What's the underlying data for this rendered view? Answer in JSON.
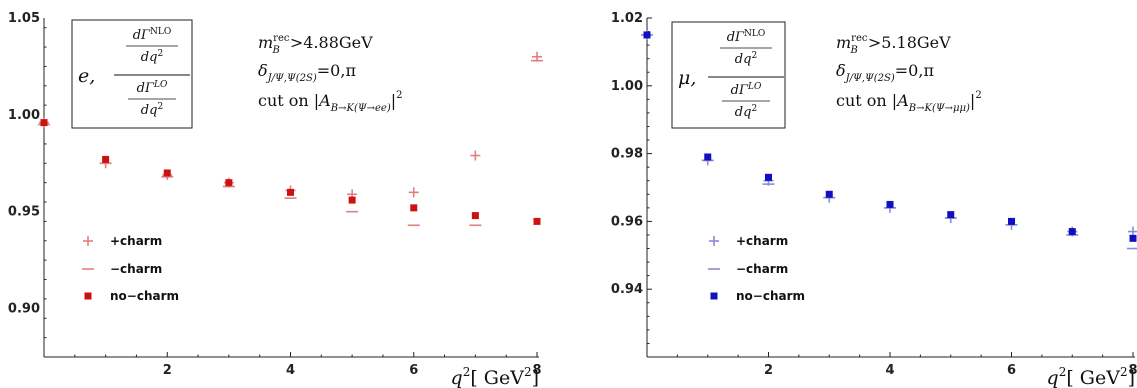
{
  "chart_data": [
    {
      "type": "scatter",
      "xlabel": "q²[ GeV²]",
      "xlim": [
        0,
        8
      ],
      "ylim": [
        0.875,
        1.05
      ],
      "xticks": [
        2,
        4,
        6,
        8
      ],
      "yticks": [
        0.9,
        0.95,
        1.0,
        1.05
      ],
      "ytick_labels": [
        "0.90",
        "0.95",
        "1.00",
        "1.05"
      ],
      "legend_position": "bottom-left",
      "box": {
        "lepton": "e,",
        "num_top": "dΓ",
        "num_sup": "NLO",
        "num_bot": "dq",
        "den_top": "dΓ",
        "den_sup": "LO",
        "den_bot": "dq"
      },
      "annotations": {
        "cut_mass": "m_B^rec>4.88GeV",
        "phase": "δ_{J/Ψ,Ψ(2S)}=0,π",
        "cut_amp": "cut on |A_{B→K(Ψ→ee)}|²"
      },
      "series": [
        {
          "name": "+charm",
          "marker": "plus",
          "color": "#e08080",
          "x": [
            0,
            1,
            2,
            3,
            4,
            5,
            6,
            7,
            8
          ],
          "values": [
            0.996,
            0.975,
            0.969,
            0.965,
            0.961,
            0.959,
            0.96,
            0.979,
            1.03
          ]
        },
        {
          "name": "−charm",
          "marker": "dash",
          "color": "#e08080",
          "x": [
            0,
            1,
            2,
            3,
            4,
            5,
            6,
            7,
            8
          ],
          "values": [
            0.995,
            0.975,
            0.968,
            0.963,
            0.957,
            0.95,
            0.943,
            0.943,
            1.028
          ]
        },
        {
          "name": "no−charm",
          "marker": "square",
          "color": "#cc1111",
          "x": [
            0,
            1,
            2,
            3,
            4,
            5,
            6,
            7,
            8
          ],
          "values": [
            0.996,
            0.977,
            0.97,
            0.965,
            0.96,
            0.956,
            0.952,
            0.948,
            0.945
          ]
        }
      ]
    },
    {
      "type": "scatter",
      "xlabel": "q²[ GeV²]",
      "xlim": [
        0,
        8
      ],
      "ylim": [
        0.92,
        1.02
      ],
      "xticks": [
        2,
        4,
        6,
        8
      ],
      "yticks": [
        0.94,
        0.96,
        0.98,
        1.0,
        1.02
      ],
      "ytick_labels": [
        "0.94",
        "0.96",
        "0.98",
        "1.00",
        "1.02"
      ],
      "legend_position": "bottom-left",
      "box": {
        "lepton": "μ,",
        "num_top": "dΓ",
        "num_sup": "NLO",
        "num_bot": "dq",
        "den_top": "dΓ",
        "den_sup": "LO",
        "den_bot": "dq"
      },
      "annotations": {
        "cut_mass": "m_B^rec>5.18GeV",
        "phase": "δ_{J/Ψ,Ψ(2S)}=0,π",
        "cut_amp": "cut on |A_{B→K(Ψ→μμ)}|²"
      },
      "series": [
        {
          "name": "+charm",
          "marker": "plus",
          "color": "#8a8ad8",
          "x": [
            0,
            1,
            2,
            3,
            4,
            5,
            6,
            7,
            8
          ],
          "values": [
            1.015,
            0.978,
            0.972,
            0.967,
            0.964,
            0.961,
            0.959,
            0.957,
            0.957
          ]
        },
        {
          "name": "−charm",
          "marker": "dash",
          "color": "#8a8ad8",
          "x": [
            0,
            1,
            2,
            3,
            4,
            5,
            6,
            7,
            8
          ],
          "values": [
            1.015,
            0.978,
            0.971,
            0.967,
            0.964,
            0.961,
            0.959,
            0.956,
            0.952
          ]
        },
        {
          "name": "no−charm",
          "marker": "square",
          "color": "#1010c0",
          "x": [
            0,
            1,
            2,
            3,
            4,
            5,
            6,
            7,
            8
          ],
          "values": [
            1.015,
            0.979,
            0.973,
            0.968,
            0.965,
            0.962,
            0.96,
            0.957,
            0.955
          ]
        }
      ]
    }
  ]
}
